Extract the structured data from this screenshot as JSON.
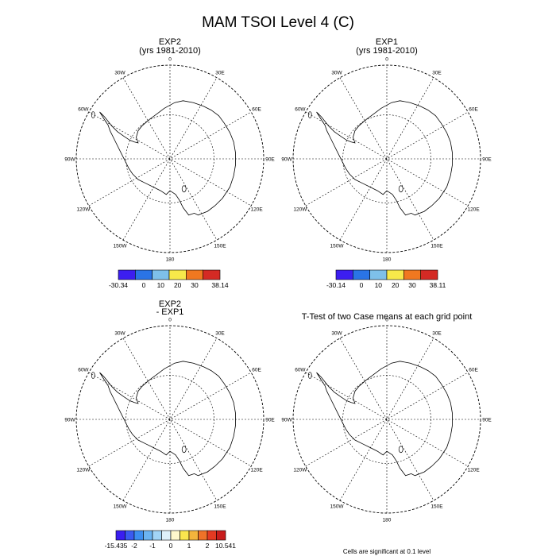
{
  "title": "MAM TSOI Level 4 (C)",
  "panels": [
    {
      "title_lines": [
        "EXP2",
        "(yrs 1981-2010)"
      ],
      "colorbar": {
        "colors": [
          "#3c1ef0",
          "#2a74e6",
          "#7ec0ea",
          "#f7e94a",
          "#f07820",
          "#d42a24"
        ],
        "labels": [
          "-30.34",
          "0",
          "10",
          "20",
          "30",
          "38.14"
        ]
      }
    },
    {
      "title_lines": [
        "EXP1",
        "(yrs 1981-2010)"
      ],
      "colorbar": {
        "colors": [
          "#3c1ef0",
          "#2a74e6",
          "#7ec0ea",
          "#f7e94a",
          "#f07820",
          "#d42a24"
        ],
        "labels": [
          "-30.14",
          "0",
          "10",
          "20",
          "30",
          "38.11"
        ]
      }
    },
    {
      "title_lines": [
        "EXP2",
        "- EXP1"
      ],
      "colorbar": {
        "colors": [
          "#3a1ef0",
          "#3a5af0",
          "#3c8ef0",
          "#6bb4f2",
          "#a2d4f6",
          "#dff1fb",
          "#fff8cc",
          "#fbe64e",
          "#f4b43c",
          "#ee7228",
          "#e43a22",
          "#c81c1c"
        ],
        "labels": [
          "-15.435",
          "-2",
          "-1",
          "0",
          "1",
          "2",
          "10.541"
        ]
      }
    },
    {
      "title_lines": [
        "T-Test of two Case means at each grid point"
      ],
      "footnote": "Cells are significant at 0.1 level"
    }
  ],
  "map_labels": {
    "lon_top": [
      "30W",
      "0",
      "30E"
    ],
    "lon_upper": [
      "60W",
      "60E"
    ],
    "lon_mid": [
      "90W",
      "90E"
    ],
    "lon_lower": [
      "120W",
      "120E"
    ],
    "lon_bottom": [
      "150W",
      "180",
      "150E"
    ]
  }
}
